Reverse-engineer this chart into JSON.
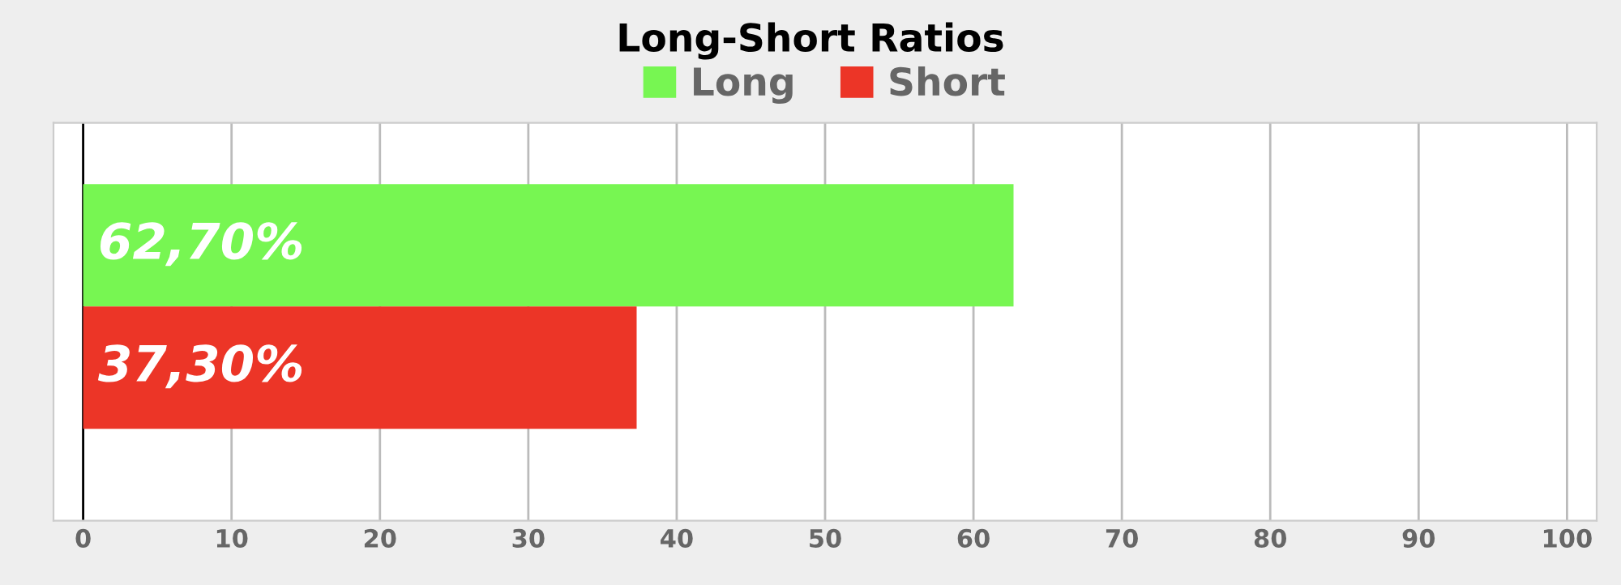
{
  "chart_data": {
    "type": "bar",
    "orientation": "horizontal",
    "title": "Long-Short Ratios",
    "categories": [
      null
    ],
    "series": [
      {
        "name": "Long",
        "color": "#77f652",
        "values": [
          62.7
        ],
        "value_labels": [
          "62,70%"
        ]
      },
      {
        "name": "Short",
        "color": "#ec3527",
        "values": [
          37.3
        ],
        "value_labels": [
          "37,30%"
        ]
      }
    ],
    "xlim": [
      -2,
      102
    ],
    "xticks": [
      0,
      10,
      20,
      30,
      40,
      50,
      60,
      70,
      80,
      90,
      100
    ],
    "grid": "x",
    "legend": "top",
    "tick_labels": "x"
  }
}
